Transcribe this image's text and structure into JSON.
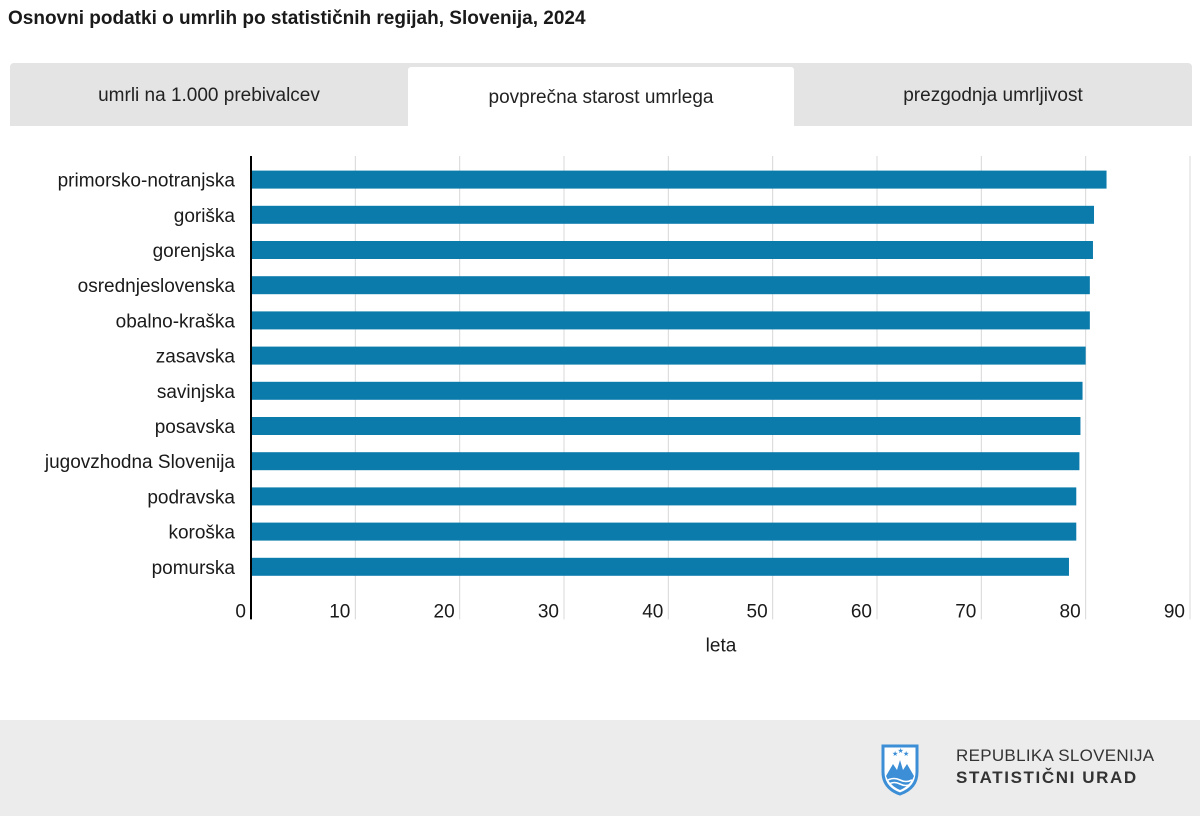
{
  "title": "Osnovni podatki o umrlih po statističnih regijah, Slovenija, 2024",
  "tabs": [
    {
      "label": "umrli na 1.000 prebivalcev",
      "active": false
    },
    {
      "label": "povprečna starost umrlega",
      "active": true
    },
    {
      "label": "prezgodnja umrljivost",
      "active": false
    }
  ],
  "colors": {
    "bar": "#0b7bab",
    "grid": "#d8d8d8",
    "axis": "#000000",
    "footer": "#ececec",
    "emblem": "#3c8fd6"
  },
  "chart_data": {
    "type": "bar",
    "orientation": "horizontal",
    "categories": [
      "primorsko-notranjska",
      "goriška",
      "gorenjska",
      "osrednjeslovenska",
      "obalno-kraška",
      "zasavska",
      "savinjska",
      "posavska",
      "jugovzhodna Slovenija",
      "podravska",
      "koroška",
      "pomurska"
    ],
    "values": [
      82.0,
      80.8,
      80.7,
      80.4,
      80.4,
      80.0,
      79.7,
      79.5,
      79.4,
      79.1,
      79.1,
      78.4
    ],
    "xlabel": "leta",
    "xlim": [
      0,
      90
    ],
    "xticks": [
      "0",
      "10",
      "20",
      "30",
      "40",
      "50",
      "60",
      "70",
      "80",
      "90"
    ],
    "grid": true
  },
  "footer": {
    "line1": "REPUBLIKA SLOVENIJA",
    "line2": "STATISTIČNI URAD",
    "emblem_icon": "slovenia-coat-of-arms-icon"
  }
}
